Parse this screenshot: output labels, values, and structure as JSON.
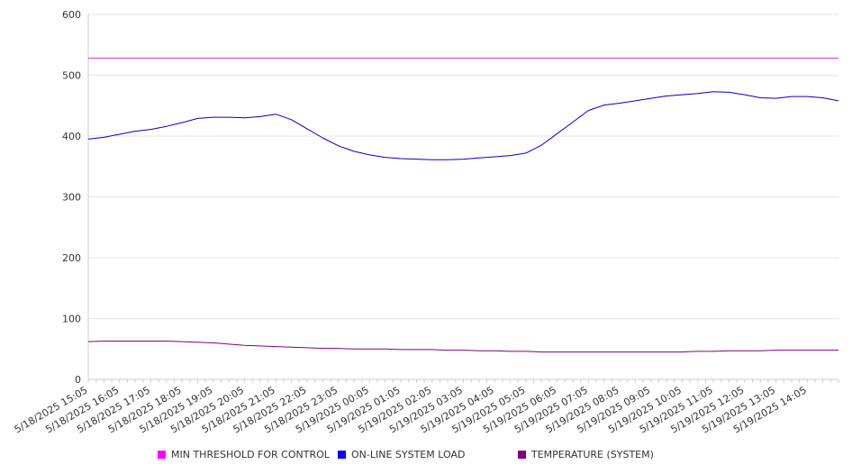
{
  "chart_data": {
    "type": "line",
    "y_axis": {
      "min": 0,
      "max": 600,
      "ticks": [
        0,
        100,
        200,
        300,
        400,
        500,
        600
      ]
    },
    "x_tick_labels": [
      "5/18/2025 15:05",
      "5/18/2025 16:05",
      "5/18/2025 17:05",
      "5/18/2025 18:05",
      "5/18/2025 19:05",
      "5/18/2025 20:05",
      "5/18/2025 21:05",
      "5/18/2025 22:05",
      "5/18/2025 23:05",
      "5/19/2025 00:05",
      "5/19/2025 01:05",
      "5/19/2025 02:05",
      "5/19/2025 03:05",
      "5/19/2025 04:05",
      "5/19/2025 05:05",
      "5/19/2025 06:05",
      "5/19/2025 07:05",
      "5/19/2025 08:05",
      "5/19/2025 09:05",
      "5/19/2025 10:05",
      "5/19/2025 11:05",
      "5/19/2025 12:05",
      "5/19/2025 13:05",
      "5/19/2025 14:05"
    ],
    "x_range": [
      "5/18/2025 15:05",
      "5/19/2025 15:05"
    ],
    "grid": {
      "horizontal": true,
      "vertical": false
    },
    "legend_position": "bottom",
    "series": [
      {
        "name": "MIN THRESHOLD FOR CONTROL",
        "color": "#cc33cc",
        "values": [
          528,
          528,
          528,
          528,
          528,
          528,
          528,
          528,
          528,
          528,
          528,
          528,
          528,
          528,
          528,
          528,
          528,
          528,
          528,
          528,
          528,
          528,
          528,
          528,
          528,
          528,
          528,
          528,
          528,
          528,
          528,
          528,
          528,
          528,
          528,
          528,
          528,
          528,
          528,
          528,
          528,
          528,
          528,
          528,
          528,
          528,
          528,
          528,
          528
        ]
      },
      {
        "name": "ON-LINE SYSTEM LOAD",
        "color": "#0000cc",
        "values": [
          395,
          398,
          403,
          408,
          411,
          416,
          422,
          429,
          431,
          431,
          430,
          432,
          436,
          427,
          412,
          397,
          384,
          375,
          369,
          365,
          363,
          362,
          361,
          361,
          362,
          364,
          366,
          368,
          372,
          385,
          404,
          423,
          442,
          451,
          454,
          458,
          462,
          466,
          468,
          470,
          473,
          472,
          468,
          463,
          462,
          465,
          465,
          463,
          458
        ]
      },
      {
        "name": "TEMPERATURE (SYSTEM)",
        "color": "#800080",
        "values": [
          62,
          63,
          63,
          63,
          63,
          63,
          62,
          61,
          60,
          58,
          56,
          55,
          54,
          53,
          52,
          51,
          51,
          50,
          50,
          50,
          49,
          49,
          49,
          48,
          48,
          47,
          47,
          46,
          46,
          45,
          45,
          45,
          45,
          45,
          45,
          45,
          45,
          45,
          45,
          46,
          46,
          47,
          47,
          47,
          48,
          48,
          48,
          48,
          48
        ]
      }
    ]
  }
}
